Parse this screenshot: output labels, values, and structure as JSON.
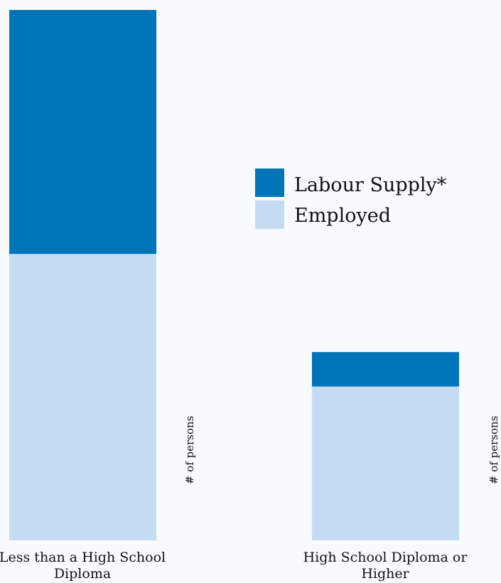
{
  "chart_data": {
    "type": "bar",
    "stacked": true,
    "categories": [
      "Less than a High School Diploma",
      "High School Diploma or Higher"
    ],
    "category_lines": [
      [
        "Less than a High School",
        "Diploma"
      ],
      [
        "High School Diploma or",
        "Higher"
      ]
    ],
    "ylabel": "# of persons",
    "ylim": [
      0,
      100
    ],
    "grid": false,
    "legend_placement": "center",
    "series": [
      {
        "name": "Employed",
        "color": "#c5dbf1",
        "values": [
          54,
          29
        ]
      },
      {
        "name": "Labour Supply*",
        "color": "#0074b8",
        "values": [
          46,
          6.5
        ]
      }
    ],
    "legend": [
      "Labour Supply*",
      "Employed"
    ]
  }
}
